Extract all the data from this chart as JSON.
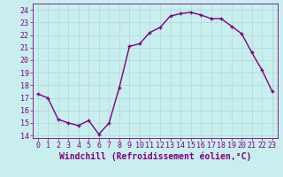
{
  "x": [
    0,
    1,
    2,
    3,
    4,
    5,
    6,
    7,
    8,
    9,
    10,
    11,
    12,
    13,
    14,
    15,
    16,
    17,
    18,
    19,
    20,
    21,
    22,
    23
  ],
  "y": [
    17.3,
    17.0,
    15.3,
    15.0,
    14.8,
    15.2,
    14.1,
    15.0,
    17.8,
    21.1,
    21.3,
    22.2,
    22.6,
    23.5,
    23.7,
    23.8,
    23.6,
    23.3,
    23.3,
    22.7,
    22.1,
    20.6,
    19.2,
    17.5
  ],
  "line_color": "#800080",
  "marker": "+",
  "bg_color": "#c8eeee",
  "grid_color": "#b0d8d8",
  "xlabel": "Windchill (Refroidissement éolien,°C)",
  "ylim": [
    13.8,
    24.5
  ],
  "xlim": [
    -0.5,
    23.5
  ],
  "yticks": [
    14,
    15,
    16,
    17,
    18,
    19,
    20,
    21,
    22,
    23,
    24
  ],
  "xticks": [
    0,
    1,
    2,
    3,
    4,
    5,
    6,
    7,
    8,
    9,
    10,
    11,
    12,
    13,
    14,
    15,
    16,
    17,
    18,
    19,
    20,
    21,
    22,
    23
  ],
  "tick_label_fontsize": 6,
  "xlabel_fontsize": 7,
  "line_width": 1.0,
  "marker_size": 3,
  "marker_edge_width": 1.0
}
